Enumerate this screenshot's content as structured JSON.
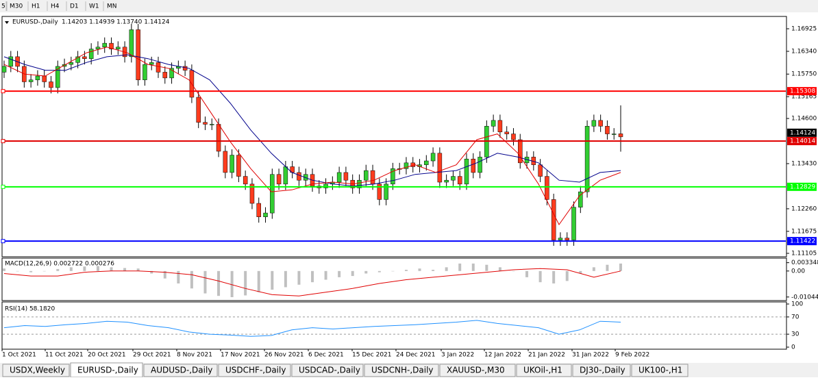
{
  "toolbar": {
    "timeframes": [
      "5",
      "M30",
      "H1",
      "H4",
      "D1",
      "W1",
      "MN"
    ]
  },
  "main_chart": {
    "header": "EURUSD-,Daily",
    "ohlc": "1.14203 1.14939 1.13740 1.14124",
    "ylim": [
      1.11105,
      1.16925
    ],
    "price_ticks": [
      1.16925,
      1.1634,
      1.1575,
      1.15165,
      1.146,
      1.1343,
      1.1226,
      1.11675,
      1.11105
    ],
    "price_tick_labels": [
      "1.16925",
      "1.16340",
      "1.15750",
      "1.15165",
      "1.14600",
      "1.13430",
      "1.12260",
      "1.11675",
      "1.11105"
    ],
    "current_price": {
      "value": 1.14124,
      "label": "1.14124"
    },
    "levels": [
      {
        "value": 1.15308,
        "label": "1.15308",
        "color": "#ff0000"
      },
      {
        "value": 1.14014,
        "label": "1.14014",
        "color": "#e00000"
      },
      {
        "value": 1.12829,
        "label": "1.12829",
        "color": "#00ff00"
      },
      {
        "value": 1.11422,
        "label": "1.11422",
        "color": "#0000ff"
      }
    ],
    "open": [
      1.158,
      1.1595,
      1.162,
      1.1595,
      1.1555,
      1.156,
      1.157,
      1.1555,
      1.154,
      1.1595,
      1.16,
      1.1605,
      1.162,
      1.1615,
      1.164,
      1.1645,
      1.1655,
      1.164,
      1.1645,
      1.162,
      1.169,
      1.156,
      1.16,
      1.1605,
      1.158,
      1.1565,
      1.159,
      1.1595,
      1.1585,
      1.1515,
      1.145,
      1.1445,
      1.1445,
      1.1375,
      1.132,
      1.1365,
      1.131,
      1.129,
      1.124,
      1.1205,
      1.1215,
      1.1315,
      1.129,
      1.1335,
      1.132,
      1.13,
      1.1315,
      1.1285,
      1.128,
      1.129,
      1.1295,
      1.132,
      1.13,
      1.128,
      1.13,
      1.1325,
      1.129,
      1.125,
      1.129,
      1.133,
      1.133,
      1.1345,
      1.1335,
      1.134,
      1.135,
      1.137,
      1.1295,
      1.13,
      1.131,
      1.129,
      1.1355,
      1.132,
      1.136,
      1.144,
      1.1455,
      1.1425,
      1.142,
      1.1405,
      1.1345,
      1.136,
      1.134,
      1.131,
      1.125,
      1.1145,
      1.115,
      1.1145,
      1.123,
      1.127,
      1.144,
      1.1455,
      1.144,
      1.142,
      1.14203
    ],
    "high": [
      1.161,
      1.1635,
      1.1635,
      1.161,
      1.1575,
      1.1585,
      1.1585,
      1.157,
      1.161,
      1.1615,
      1.162,
      1.1635,
      1.1635,
      1.1655,
      1.166,
      1.167,
      1.167,
      1.166,
      1.166,
      1.1705,
      1.1705,
      1.1615,
      1.162,
      1.162,
      1.1595,
      1.1605,
      1.161,
      1.161,
      1.16,
      1.153,
      1.1465,
      1.146,
      1.146,
      1.139,
      1.138,
      1.138,
      1.1325,
      1.1305,
      1.1255,
      1.123,
      1.133,
      1.133,
      1.135,
      1.135,
      1.1335,
      1.133,
      1.133,
      1.13,
      1.1305,
      1.131,
      1.1335,
      1.1335,
      1.1315,
      1.1315,
      1.134,
      1.134,
      1.1305,
      1.1305,
      1.1345,
      1.1345,
      1.136,
      1.136,
      1.1355,
      1.1365,
      1.1385,
      1.1385,
      1.1315,
      1.1325,
      1.1325,
      1.137,
      1.137,
      1.1375,
      1.1455,
      1.147,
      1.147,
      1.144,
      1.1435,
      1.142,
      1.1375,
      1.1375,
      1.1355,
      1.1325,
      1.1265,
      1.1165,
      1.1165,
      1.1245,
      1.1285,
      1.1455,
      1.147,
      1.147,
      1.1455,
      1.1435,
      1.14939
    ],
    "low": [
      1.1565,
      1.158,
      1.158,
      1.154,
      1.154,
      1.1545,
      1.154,
      1.1525,
      1.1525,
      1.158,
      1.1585,
      1.159,
      1.16,
      1.16,
      1.1625,
      1.163,
      1.1625,
      1.1625,
      1.1605,
      1.1605,
      1.1545,
      1.1545,
      1.1585,
      1.1565,
      1.155,
      1.155,
      1.1575,
      1.157,
      1.15,
      1.1435,
      1.143,
      1.143,
      1.136,
      1.1305,
      1.1305,
      1.1295,
      1.1275,
      1.1225,
      1.119,
      1.119,
      1.12,
      1.1275,
      1.1275,
      1.1305,
      1.1285,
      1.1285,
      1.127,
      1.1265,
      1.1265,
      1.1275,
      1.128,
      1.1285,
      1.1265,
      1.1265,
      1.1285,
      1.1275,
      1.1235,
      1.1235,
      1.1275,
      1.1315,
      1.1315,
      1.132,
      1.132,
      1.1325,
      1.1335,
      1.128,
      1.128,
      1.1285,
      1.1275,
      1.1275,
      1.1305,
      1.1305,
      1.1345,
      1.1425,
      1.141,
      1.1405,
      1.139,
      1.133,
      1.133,
      1.1325,
      1.1295,
      1.1235,
      1.113,
      1.113,
      1.113,
      1.113,
      1.1215,
      1.1255,
      1.1425,
      1.1425,
      1.1405,
      1.1405,
      1.1374
    ],
    "close": [
      1.1595,
      1.162,
      1.1595,
      1.1555,
      1.156,
      1.157,
      1.1555,
      1.154,
      1.1595,
      1.16,
      1.1605,
      1.162,
      1.1615,
      1.164,
      1.1645,
      1.1655,
      1.164,
      1.1645,
      1.162,
      1.169,
      1.156,
      1.16,
      1.1605,
      1.158,
      1.1565,
      1.159,
      1.1595,
      1.1585,
      1.1515,
      1.145,
      1.1445,
      1.1445,
      1.1375,
      1.132,
      1.1365,
      1.131,
      1.129,
      1.124,
      1.1205,
      1.1215,
      1.1315,
      1.129,
      1.1335,
      1.132,
      1.13,
      1.1315,
      1.1285,
      1.128,
      1.129,
      1.1295,
      1.132,
      1.13,
      1.128,
      1.13,
      1.1325,
      1.129,
      1.125,
      1.129,
      1.133,
      1.133,
      1.1345,
      1.1335,
      1.134,
      1.135,
      1.137,
      1.1295,
      1.13,
      1.131,
      1.129,
      1.1355,
      1.132,
      1.136,
      1.144,
      1.1455,
      1.1425,
      1.142,
      1.1405,
      1.1345,
      1.136,
      1.134,
      1.131,
      1.125,
      1.1145,
      1.115,
      1.1145,
      1.123,
      1.127,
      1.144,
      1.1455,
      1.144,
      1.142,
      1.142,
      1.14124
    ],
    "ma_fast": [
      1.16,
      1.1575,
      1.157,
      1.16,
      1.163,
      1.1645,
      1.163,
      1.16,
      1.159,
      1.156,
      1.148,
      1.14,
      1.133,
      1.127,
      1.1275,
      1.129,
      1.1295,
      1.129,
      1.13,
      1.1325,
      1.134,
      1.132,
      1.134,
      1.1405,
      1.142,
      1.137,
      1.129,
      1.1185,
      1.126,
      1.13,
      1.132
    ],
    "ma_slow": [
      1.162,
      1.16,
      1.1585,
      1.1585,
      1.1605,
      1.162,
      1.1625,
      1.1615,
      1.16,
      1.159,
      1.156,
      1.15,
      1.143,
      1.137,
      1.132,
      1.13,
      1.129,
      1.1285,
      1.129,
      1.13,
      1.1315,
      1.132,
      1.1325,
      1.1345,
      1.137,
      1.136,
      1.1345,
      1.13,
      1.1295,
      1.132,
      1.1325
    ]
  },
  "macd": {
    "header": "MACD(12,26,9) 0.002722 0.000276",
    "ylim": [
      -0.0116,
      0.0049
    ],
    "ticks": [
      0.003348,
      0.0,
      -0.01044
    ],
    "tick_labels": [
      "0.003348",
      "0.00",
      "-0.01044"
    ],
    "histogram": [
      0.001,
      0.0,
      -0.0005,
      0.0,
      0.0008,
      0.0015,
      0.0018,
      0.002,
      0.0015,
      0.0012,
      0.001,
      -0.001,
      -0.003,
      -0.005,
      -0.007,
      -0.009,
      -0.01,
      -0.0105,
      -0.0098,
      -0.0085,
      -0.0075,
      -0.0065,
      -0.0055,
      -0.0045,
      -0.0035,
      -0.0025,
      -0.002,
      -0.001,
      -0.0005,
      0.0,
      0.0005,
      0.001,
      0.0005,
      0.0015,
      0.003,
      0.003,
      0.0025,
      0.0015,
      0.0,
      -0.0025,
      -0.0045,
      -0.005,
      -0.004,
      -0.001,
      0.0015,
      0.0025,
      0.003
    ],
    "signal": [
      -0.001,
      -0.002,
      -0.002,
      -0.0005,
      0.0,
      0.0,
      -0.0005,
      -0.0015,
      -0.004,
      -0.007,
      -0.0095,
      -0.01,
      -0.0085,
      -0.007,
      -0.005,
      -0.0035,
      -0.0025,
      -0.0015,
      -0.0005,
      0.0005,
      0.001,
      0.0005,
      -0.0025,
      0.0
    ]
  },
  "rsi": {
    "header": "RSI(14) 58.1820",
    "ylim": [
      0,
      100
    ],
    "ticks": [
      100,
      70,
      30,
      0
    ],
    "values": [
      45,
      50,
      48,
      52,
      55,
      60,
      58,
      50,
      45,
      35,
      30,
      28,
      25,
      27,
      40,
      45,
      42,
      45,
      48,
      50,
      52,
      55,
      58,
      62,
      55,
      50,
      45,
      30,
      40,
      60,
      58
    ]
  },
  "date_labels": [
    "1 Oct 2021",
    "11 Oct 2021",
    "20 Oct 2021",
    "29 Oct 2021",
    "8 Nov 2021",
    "17 Nov 2021",
    "26 Nov 2021",
    "6 Dec 2021",
    "15 Dec 2021",
    "24 Dec 2021",
    "3 Jan 2022",
    "12 Jan 2022",
    "21 Jan 2022",
    "31 Jan 2022",
    "9 Feb 2022"
  ],
  "tabs": [
    "USDX,Weekly",
    "EURUSD-,Daily",
    "AUDUSD-,Daily",
    "USDCHF-,Daily",
    "USDCAD-,Daily",
    "USDCNH-,Daily",
    "XAUUSD-,M30",
    "UKOil-,H1",
    "DJ30-,Daily",
    "UK100-,H1"
  ],
  "active_tab": 1
}
